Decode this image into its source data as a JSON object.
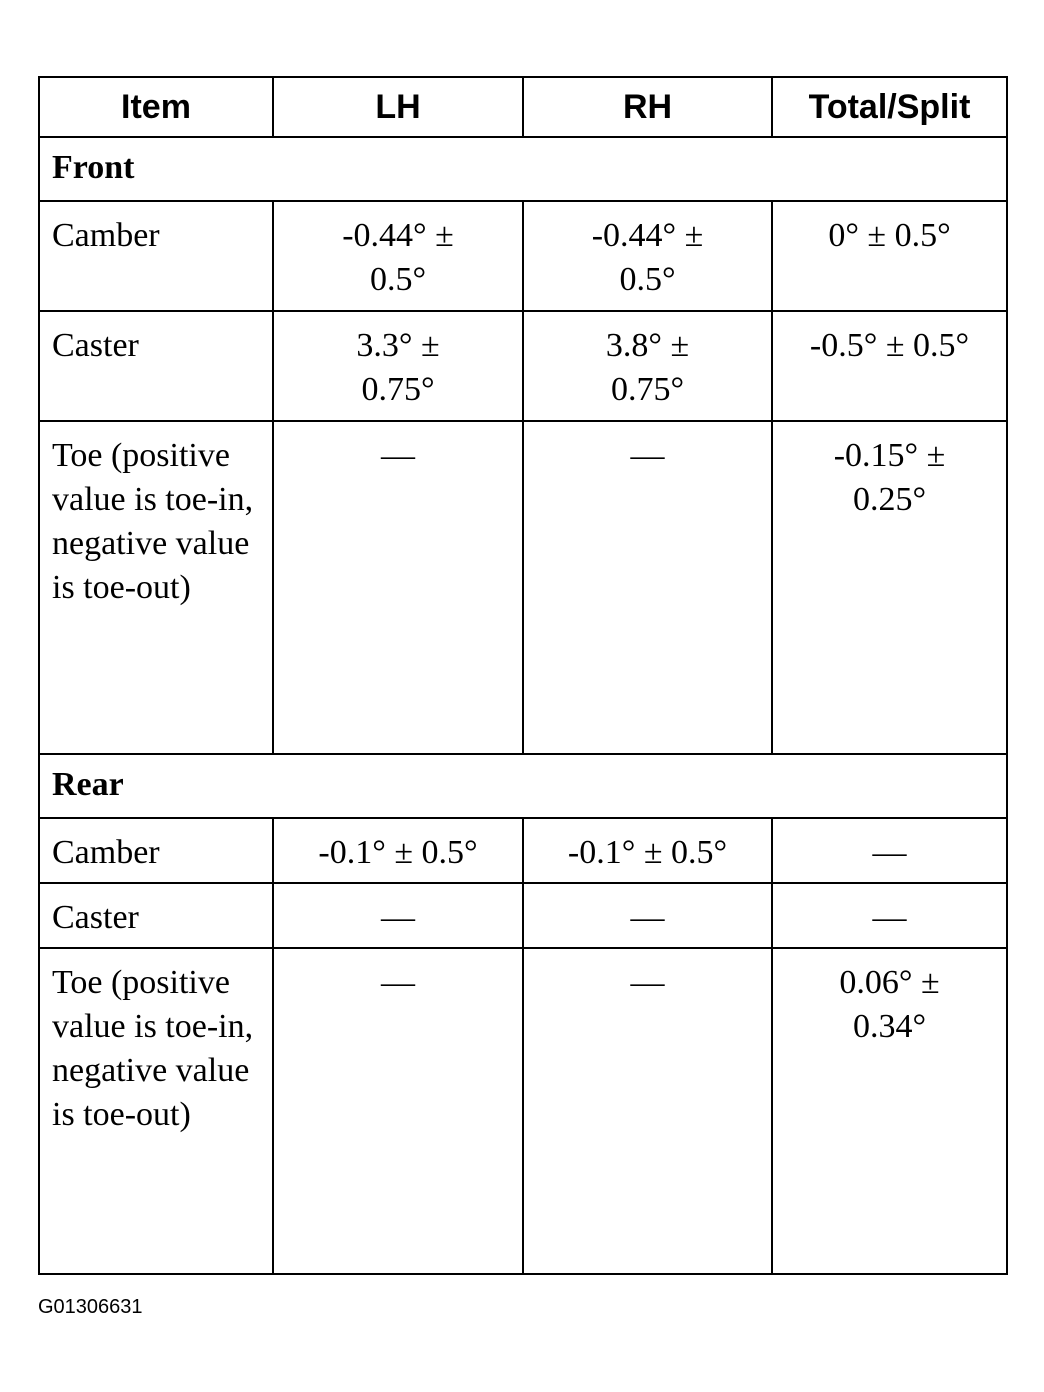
{
  "table": {
    "headers": [
      "Item",
      "LH",
      "RH",
      "Total/Split"
    ],
    "sections": [
      {
        "title": "Front",
        "rows": [
          {
            "item": "Camber",
            "lh": "-0.44° ± 0.5°",
            "rh": "-0.44° ± 0.5°",
            "total": "0° ± 0.5°"
          },
          {
            "item": "Caster",
            "lh": "3.3° ± 0.75°",
            "rh": "3.8° ± 0.75°",
            "total": "-0.5° ± 0.5°"
          },
          {
            "item": "Toe (positive value is toe-in, negative value is toe-out)",
            "lh": "—",
            "rh": "—",
            "total": "-0.15° ± 0.25°"
          }
        ]
      },
      {
        "title": "Rear",
        "rows": [
          {
            "item": "Camber",
            "lh": "-0.1° ± 0.5°",
            "rh": "-0.1° ± 0.5°",
            "total": "—"
          },
          {
            "item": "Caster",
            "lh": "—",
            "rh": "—",
            "total": "—"
          },
          {
            "item": "Toe (positive value is toe-in, negative value is toe-out)",
            "lh": "—",
            "rh": "—",
            "total": "0.06° ± 0.34°"
          }
        ]
      }
    ]
  },
  "caption": "G01306631"
}
